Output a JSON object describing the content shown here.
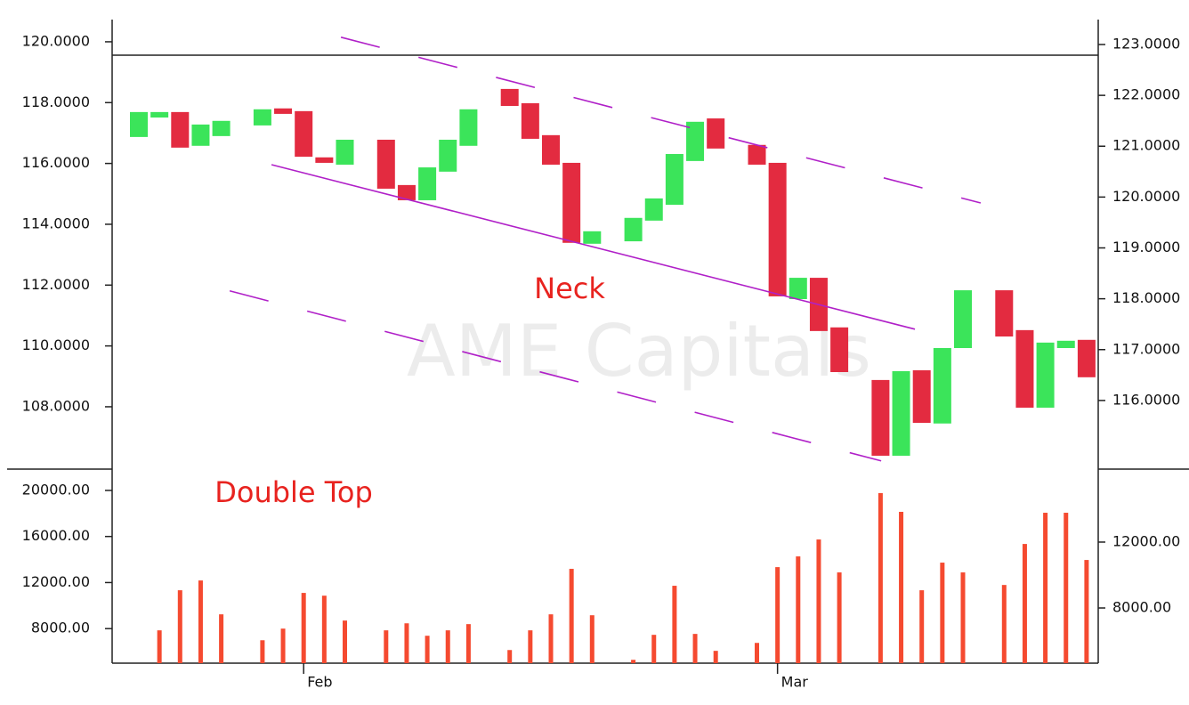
{
  "chart_data": [
    {
      "type": "candlestick",
      "categories": [
        null,
        null,
        null,
        null,
        null,
        null,
        null,
        null,
        "Feb",
        null,
        null,
        null,
        null,
        null,
        null,
        null,
        null,
        null,
        null,
        null,
        null,
        null,
        null,
        null,
        null,
        null,
        null,
        null,
        null,
        null,
        null,
        "Mar",
        null,
        null,
        null,
        null,
        null,
        null,
        null,
        null,
        null,
        null,
        null,
        null,
        null,
        null,
        null
      ],
      "open": [
        116.87,
        117.51,
        117.69,
        116.58,
        116.9,
        null,
        117.25,
        117.81,
        117.72,
        116.2,
        115.96,
        null,
        116.78,
        115.29,
        114.79,
        115.73,
        116.58,
        null,
        118.45,
        117.98,
        116.93,
        116.02,
        113.36,
        null,
        113.44,
        114.12,
        114.64,
        116.08,
        117.48,
        null,
        116.61,
        116.02,
        111.54,
        112.24,
        110.61,
        null,
        108.88,
        106.39,
        109.2,
        107.45,
        109.93,
        null,
        111.83,
        110.52,
        107.97,
        109.93,
        110.2
      ],
      "close": [
        117.69,
        117.69,
        116.52,
        117.28,
        117.4,
        null,
        117.78,
        117.63,
        116.22,
        116.02,
        116.78,
        null,
        115.17,
        114.79,
        115.87,
        116.78,
        117.78,
        null,
        117.89,
        116.81,
        115.96,
        113.39,
        113.77,
        null,
        114.21,
        114.85,
        116.31,
        117.37,
        116.49,
        null,
        115.96,
        111.63,
        112.24,
        110.49,
        109.14,
        null,
        106.39,
        109.17,
        107.47,
        109.93,
        111.83,
        null,
        110.31,
        107.97,
        110.11,
        110.17,
        108.97
      ],
      "up_color": "#3be45a",
      "down_color": "#e32b40",
      "ylim": [
        105.95,
        120.73
      ],
      "yticks": [
        {
          "value": 108,
          "label": "108.0000"
        },
        {
          "value": 110,
          "label": "110.0000"
        },
        {
          "value": 112,
          "label": "112.0000"
        },
        {
          "value": 114,
          "label": "114.0000"
        },
        {
          "value": 116,
          "label": "116.0000"
        },
        {
          "value": 118,
          "label": "118.0000"
        },
        {
          "value": 120,
          "label": "120.0000"
        }
      ],
      "y2lim": [
        114.65,
        123.49
      ],
      "y2ticks": [
        {
          "value": 116,
          "label": "116.0000"
        },
        {
          "value": 117,
          "label": "117.0000"
        },
        {
          "value": 118,
          "label": "118.0000"
        },
        {
          "value": 119,
          "label": "119.0000"
        },
        {
          "value": 120,
          "label": "120.0000"
        },
        {
          "value": 121,
          "label": "121.0000"
        },
        {
          "value": 122,
          "label": "122.0000"
        },
        {
          "value": 123,
          "label": "123.0000"
        }
      ],
      "horizontal_line": 119.56,
      "trendline_color": "#b020c8",
      "trendlines": [
        {
          "style": "solid",
          "x": [
            6.44,
            37.67
          ],
          "y": [
            115.96,
            110.55
          ]
        },
        {
          "style": "dashed",
          "x": [
            9.81,
            40.86
          ],
          "y": [
            120.15,
            114.7
          ]
        },
        {
          "style": "dashed",
          "x": [
            4.41,
            36.03
          ],
          "y": [
            111.81,
            106.22
          ]
        }
      ],
      "annotations": [
        "Neck",
        "Double Top"
      ],
      "annotation_color": "#e8231f",
      "watermark": "AME Capitals"
    },
    {
      "type": "bar",
      "values": [
        null,
        7850,
        11330,
        12180,
        9240,
        null,
        6990,
        8000,
        11100,
        10860,
        8700,
        null,
        7850,
        8460,
        7380,
        7850,
        8390,
        null,
        6140,
        7850,
        9240,
        13190,
        9160,
        null,
        5290,
        7460,
        11720,
        7540,
        6070,
        null,
        6760,
        13340,
        14270,
        15740,
        12880,
        null,
        19770,
        18140,
        11330,
        13730,
        12880,
        null,
        11790,
        15350,
        18060,
        18060,
        13960
      ],
      "color": "#f54a30",
      "ylim": [
        5000,
        21850
      ],
      "yticks": [
        {
          "value": 8000,
          "label": "8000.00"
        },
        {
          "value": 12000,
          "label": "12000.00"
        },
        {
          "value": 16000,
          "label": "16000.00"
        },
        {
          "value": 20000,
          "label": "20000.00"
        }
      ],
      "y2lim": [
        4650,
        16430
      ],
      "y2ticks": [
        {
          "value": 8000,
          "label": "8000.00"
        },
        {
          "value": 12000,
          "label": "12000.00"
        }
      ]
    }
  ]
}
